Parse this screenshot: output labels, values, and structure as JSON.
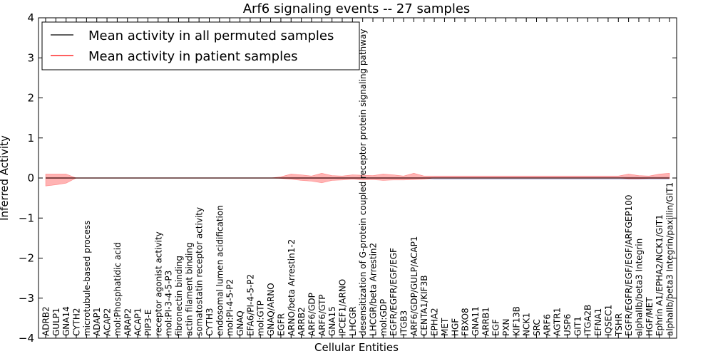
{
  "chart_data": {
    "type": "line",
    "title": "Arf6 signaling events -- 27 samples",
    "xlabel": "Cellular Entities",
    "ylabel": "Inferred Activity",
    "ylim": [
      -4,
      4
    ],
    "yticks": [
      "4",
      "3",
      "2",
      "1",
      "0",
      "−1",
      "−2",
      "−3",
      "−4"
    ],
    "legend_position": "top-left",
    "grid": false,
    "colors": {
      "mean_line": "#000000",
      "patient_line": "#ff0000",
      "patient_band": "#ff9999",
      "permuted_band": "#c8c8e6"
    },
    "categories": [
      "ADRB2",
      "GULP1",
      "GNA14",
      "CYTH2",
      "microtubule-based process",
      "ADAP1",
      "ACAP2",
      "mol:Phosphatidic acid",
      "ARAP2",
      "ACAP1",
      "PIP3-E",
      "receptor agonist activity",
      "mol:PI-3-4-5-P3",
      "fibronectin binding",
      "actin filament binding",
      "somatostatin receptor activity",
      "CYTH3",
      "endosomal lumen acidification",
      "mol:PI-4-5-P2",
      "GNAQ",
      "EFA6/PI-4-5-P2",
      "mol:GTP",
      "GNAQ/ARNO",
      "EGFR",
      "ARNO/beta Arrestin1-2",
      "ARRB2",
      "ARF6/GDP",
      "ARF6/GTP",
      "GNA15",
      "IPCEF1/ARNO",
      "LHCGR",
      "desensitization of G-protein coupled receptor protein signaling pathway",
      "LHCGR/beta Arrestin2",
      "mol:GDP",
      "EGFR/EGFR/EGF/EGF",
      "ITGB3",
      "ARF6/GDP/GULP/ACAP1",
      "CENTA1/KIF3B",
      "EPHA2",
      "MET",
      "HGF",
      "FBXO8",
      "GNA11",
      "ARRB1",
      "EGF",
      "PXN",
      "KIF13B",
      "NCK1",
      "SRC",
      "ARF6",
      "AGTR1",
      "USP6",
      "GIT1",
      "ITGA2B",
      "EFNA1",
      "IQSEC1",
      "TSHR",
      "EGFR/EGFR/EGF/EGF/ARFGEP100",
      "alphaIIb/beta3 Integrin",
      "HGF/MET",
      "Ephrin A1/EPHA2/NCK1/GIT1",
      "alphaIIb/beta3 Integrin/paxillin/GIT1"
    ],
    "series": [
      {
        "name": "Mean activity in all permuted samples",
        "values": [
          0.0,
          0.0,
          0.0,
          0.0,
          0.0,
          0.0,
          0.0,
          0.0,
          0.0,
          0.0,
          0.0,
          0.0,
          0.0,
          0.0,
          0.0,
          0.0,
          0.0,
          0.0,
          0.0,
          0.0,
          0.0,
          0.0,
          0.0,
          0.0,
          0.0,
          0.0,
          0.0,
          0.0,
          0.0,
          0.0,
          0.0,
          0.0,
          0.0,
          0.0,
          0.0,
          0.0,
          0.0,
          0.0,
          0.0,
          0.0,
          0.0,
          0.0,
          0.0,
          0.0,
          0.0,
          0.0,
          0.0,
          0.0,
          0.0,
          0.0,
          0.0,
          0.0,
          0.0,
          0.0,
          0.0,
          0.0,
          0.0,
          0.0,
          0.0,
          0.0,
          0.0,
          0.0
        ],
        "lower": [
          -0.01,
          -0.01,
          -0.01,
          0.0,
          0.0,
          0.0,
          0.0,
          0.0,
          0.0,
          0.0,
          0.0,
          0.0,
          0.0,
          0.0,
          0.0,
          0.0,
          0.0,
          0.0,
          0.0,
          0.0,
          0.0,
          0.0,
          0.0,
          -0.01,
          -0.02,
          -0.02,
          -0.02,
          -0.02,
          -0.02,
          -0.02,
          -0.02,
          -0.02,
          -0.02,
          -0.02,
          -0.02,
          -0.02,
          -0.02,
          -0.02,
          -0.05,
          -0.05,
          -0.05,
          -0.05,
          -0.05,
          -0.05,
          -0.05,
          -0.05,
          -0.05,
          -0.05,
          -0.05,
          -0.05,
          -0.05,
          -0.05,
          -0.05,
          -0.05,
          -0.05,
          -0.05,
          -0.05,
          -0.05,
          -0.05,
          -0.05,
          -0.05,
          -0.05
        ],
        "upper": [
          0.01,
          0.01,
          0.01,
          0.0,
          0.0,
          0.0,
          0.0,
          0.0,
          0.0,
          0.0,
          0.0,
          0.0,
          0.0,
          0.0,
          0.0,
          0.0,
          0.0,
          0.0,
          0.0,
          0.0,
          0.0,
          0.0,
          0.0,
          0.01,
          0.02,
          0.02,
          0.02,
          0.02,
          0.02,
          0.02,
          0.02,
          0.02,
          0.02,
          0.02,
          0.02,
          0.02,
          0.02,
          0.02,
          0.05,
          0.05,
          0.05,
          0.05,
          0.05,
          0.05,
          0.05,
          0.05,
          0.05,
          0.05,
          0.05,
          0.05,
          0.05,
          0.05,
          0.05,
          0.05,
          0.05,
          0.05,
          0.05,
          0.05,
          0.05,
          0.05,
          0.05,
          0.05
        ]
      },
      {
        "name": "Mean activity in patient samples",
        "values": [
          0.0,
          0.0,
          0.0,
          0.0,
          0.0,
          0.0,
          0.0,
          0.0,
          0.0,
          0.0,
          0.0,
          0.0,
          0.0,
          0.0,
          0.0,
          0.0,
          0.0,
          0.0,
          0.0,
          0.0,
          0.0,
          0.0,
          0.0,
          0.0,
          0.0,
          0.0,
          0.0,
          0.0,
          0.0,
          0.0,
          0.0,
          0.0,
          0.0,
          0.0,
          0.0,
          0.0,
          0.0,
          0.0,
          0.0,
          0.0,
          0.0,
          0.0,
          0.0,
          0.0,
          0.0,
          0.0,
          0.0,
          0.0,
          0.0,
          0.0,
          0.0,
          0.0,
          0.0,
          0.0,
          0.0,
          0.0,
          0.0,
          0.0,
          0.0,
          0.0,
          0.0,
          0.0
        ],
        "lower": [
          -0.2,
          -0.17,
          -0.13,
          0.0,
          0.0,
          0.0,
          0.0,
          0.0,
          0.0,
          0.0,
          0.0,
          0.0,
          0.0,
          0.0,
          0.0,
          0.0,
          0.0,
          0.0,
          0.0,
          0.0,
          0.0,
          0.0,
          0.0,
          -0.01,
          -0.03,
          -0.06,
          -0.08,
          -0.12,
          -0.06,
          -0.05,
          -0.03,
          -0.05,
          -0.04,
          -0.06,
          -0.05,
          -0.05,
          -0.04,
          -0.03,
          0.0,
          0.0,
          0.0,
          0.0,
          0.0,
          0.0,
          0.0,
          0.0,
          0.0,
          0.0,
          0.0,
          0.0,
          0.0,
          0.0,
          0.0,
          0.0,
          0.0,
          0.0,
          0.0,
          -0.02,
          -0.02,
          -0.01,
          -0.01,
          -0.01
        ],
        "upper": [
          0.1,
          0.1,
          0.1,
          0.0,
          0.0,
          0.0,
          0.0,
          0.0,
          0.0,
          0.0,
          0.0,
          0.0,
          0.0,
          0.0,
          0.0,
          0.0,
          0.0,
          0.0,
          0.0,
          0.0,
          0.0,
          0.0,
          0.0,
          0.03,
          0.1,
          0.08,
          0.05,
          0.12,
          0.06,
          0.05,
          0.08,
          0.07,
          0.06,
          0.1,
          0.08,
          0.05,
          0.12,
          0.05,
          0.05,
          0.05,
          0.05,
          0.05,
          0.05,
          0.05,
          0.05,
          0.05,
          0.05,
          0.05,
          0.05,
          0.05,
          0.05,
          0.05,
          0.05,
          0.05,
          0.05,
          0.05,
          0.05,
          0.1,
          0.06,
          0.05,
          0.1,
          0.12
        ]
      }
    ]
  }
}
